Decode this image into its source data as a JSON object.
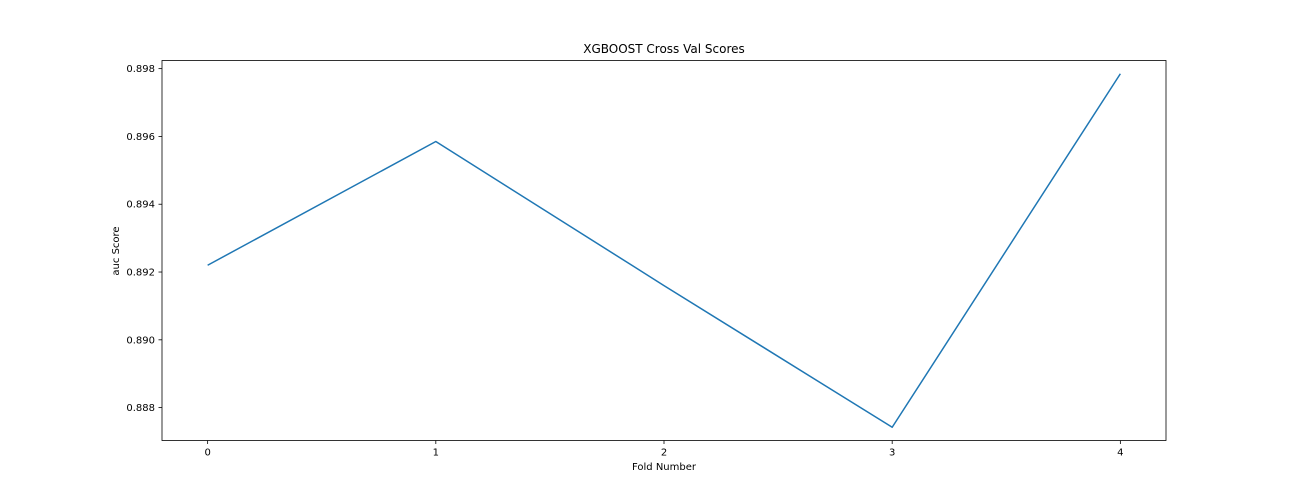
{
  "chart_data": {
    "type": "line",
    "title": "XGBOOST Cross Val Scores",
    "xlabel": "Fold Number",
    "ylabel": "auc Score",
    "x": [
      0,
      1,
      2,
      3,
      4
    ],
    "x_ticks": [
      "0",
      "1",
      "2",
      "3",
      "4"
    ],
    "y_ticks": [
      "0.888",
      "0.890",
      "0.892",
      "0.894",
      "0.896",
      "0.898"
    ],
    "y_tick_values": [
      0.888,
      0.89,
      0.892,
      0.894,
      0.896,
      0.898
    ],
    "series": [
      {
        "values": [
          0.8922,
          0.89585,
          0.8916,
          0.88742,
          0.89785
        ],
        "color": "#1f77b4"
      }
    ],
    "xlim": [
      -0.2,
      4.2
    ],
    "ylim": [
      0.88703,
      0.89824
    ],
    "grid": false,
    "legend": "none"
  }
}
